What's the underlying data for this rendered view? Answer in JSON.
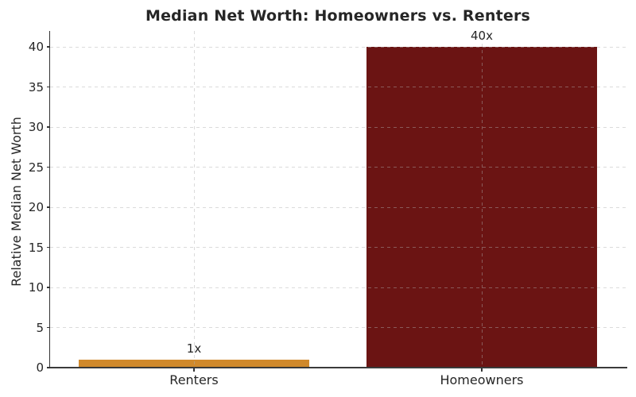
{
  "chart_data": {
    "type": "bar",
    "title": "Median Net Worth: Homeowners vs. Renters",
    "xlabel": "",
    "ylabel": "Relative Median Net Worth",
    "categories": [
      "Renters",
      "Homeowners"
    ],
    "values": [
      1,
      40
    ],
    "bar_labels": [
      "1x",
      "40x"
    ],
    "bar_colors": [
      "#D0892B",
      "#6B1413"
    ],
    "yticks": [
      0,
      5,
      10,
      15,
      20,
      25,
      30,
      35,
      40
    ],
    "ylim": [
      0,
      42
    ],
    "grid": "dashed gridlines, horizontal at each y tick and vertical at each bar center, drawn over bars with transparency",
    "legend": "none",
    "background_color": "#ffffff",
    "text_color": "#262626",
    "axis_color": "#333333"
  }
}
